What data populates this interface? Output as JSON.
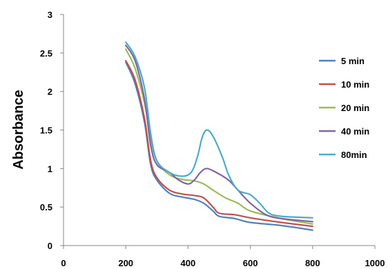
{
  "chart_data": {
    "type": "line",
    "title": "",
    "xlabel": "",
    "ylabel": "Absorbance",
    "xlim": [
      0,
      1000
    ],
    "ylim": [
      0,
      3
    ],
    "x_ticks": [
      0,
      200,
      400,
      600,
      800,
      1000
    ],
    "y_ticks": [
      0,
      0.5,
      1,
      1.5,
      2,
      2.5,
      3
    ],
    "grid": false,
    "legend_position": "right",
    "series": [
      {
        "name": "5 min",
        "color": "#4f81bd",
        "points": [
          [
            200,
            2.38
          ],
          [
            230,
            2.1
          ],
          [
            260,
            1.6
          ],
          [
            280,
            1.05
          ],
          [
            300,
            0.85
          ],
          [
            340,
            0.68
          ],
          [
            380,
            0.63
          ],
          [
            420,
            0.6
          ],
          [
            450,
            0.55
          ],
          [
            480,
            0.45
          ],
          [
            500,
            0.38
          ],
          [
            550,
            0.35
          ],
          [
            600,
            0.3
          ],
          [
            700,
            0.26
          ],
          [
            800,
            0.2
          ]
        ]
      },
      {
        "name": "10 min",
        "color": "#c0504d",
        "points": [
          [
            200,
            2.4
          ],
          [
            230,
            2.15
          ],
          [
            260,
            1.65
          ],
          [
            280,
            1.1
          ],
          [
            300,
            0.88
          ],
          [
            340,
            0.72
          ],
          [
            380,
            0.67
          ],
          [
            420,
            0.65
          ],
          [
            450,
            0.62
          ],
          [
            480,
            0.5
          ],
          [
            500,
            0.42
          ],
          [
            550,
            0.4
          ],
          [
            600,
            0.36
          ],
          [
            700,
            0.3
          ],
          [
            800,
            0.25
          ]
        ]
      },
      {
        "name": "20 min",
        "color": "#9bbb59",
        "points": [
          [
            200,
            2.55
          ],
          [
            230,
            2.3
          ],
          [
            260,
            1.85
          ],
          [
            280,
            1.4
          ],
          [
            300,
            1.1
          ],
          [
            340,
            0.92
          ],
          [
            380,
            0.86
          ],
          [
            420,
            0.84
          ],
          [
            450,
            0.8
          ],
          [
            480,
            0.72
          ],
          [
            520,
            0.62
          ],
          [
            560,
            0.55
          ],
          [
            600,
            0.45
          ],
          [
            700,
            0.35
          ],
          [
            800,
            0.28
          ]
        ]
      },
      {
        "name": "40 min",
        "color": "#8064a2",
        "points": [
          [
            200,
            2.6
          ],
          [
            230,
            2.4
          ],
          [
            260,
            1.9
          ],
          [
            280,
            1.3
          ],
          [
            300,
            1.05
          ],
          [
            340,
            0.95
          ],
          [
            370,
            0.85
          ],
          [
            400,
            0.8
          ],
          [
            420,
            0.85
          ],
          [
            440,
            0.95
          ],
          [
            460,
            1.0
          ],
          [
            490,
            0.95
          ],
          [
            530,
            0.85
          ],
          [
            560,
            0.72
          ],
          [
            600,
            0.55
          ],
          [
            650,
            0.4
          ],
          [
            700,
            0.35
          ],
          [
            800,
            0.31
          ]
        ]
      },
      {
        "name": "80min",
        "color": "#4bacc6",
        "points": [
          [
            200,
            2.64
          ],
          [
            230,
            2.45
          ],
          [
            260,
            2.05
          ],
          [
            280,
            1.45
          ],
          [
            300,
            1.1
          ],
          [
            340,
            0.95
          ],
          [
            380,
            0.9
          ],
          [
            410,
            0.95
          ],
          [
            430,
            1.15
          ],
          [
            445,
            1.4
          ],
          [
            460,
            1.5
          ],
          [
            480,
            1.42
          ],
          [
            510,
            1.15
          ],
          [
            530,
            0.92
          ],
          [
            560,
            0.72
          ],
          [
            600,
            0.66
          ],
          [
            630,
            0.55
          ],
          [
            660,
            0.42
          ],
          [
            700,
            0.38
          ],
          [
            800,
            0.36
          ]
        ]
      }
    ]
  }
}
